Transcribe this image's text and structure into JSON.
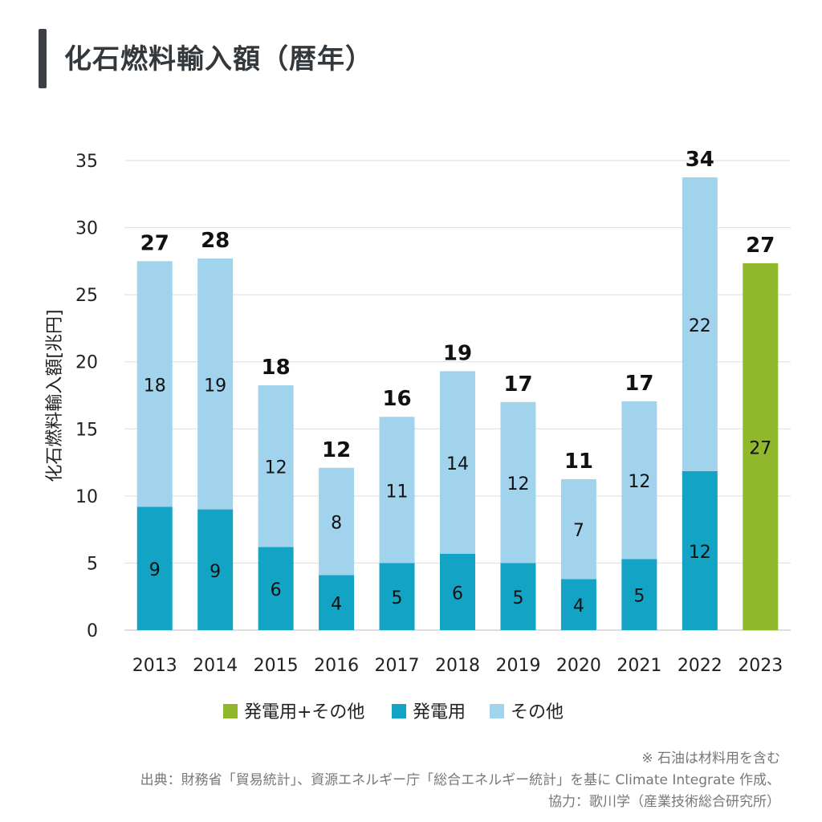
{
  "title": "化石燃料輸入額（暦年）",
  "chart_data": {
    "type": "bar",
    "stacked": true,
    "title": "化石燃料輸入額（暦年）",
    "ylabel": "化石燃料輸入額[兆円]",
    "xlabel": "",
    "ylim": [
      0,
      35
    ],
    "yticks": [
      0,
      5,
      10,
      15,
      20,
      25,
      30,
      35
    ],
    "grid": true,
    "legend_position": "bottom",
    "categories": [
      "2013",
      "2014",
      "2015",
      "2016",
      "2017",
      "2018",
      "2019",
      "2020",
      "2021",
      "2022",
      "2023"
    ],
    "series": [
      {
        "name": "発電用",
        "color": "#12a3c5",
        "values": [
          9.2,
          9.0,
          6.2,
          4.1,
          5.0,
          5.7,
          5.0,
          3.8,
          5.3,
          11.85,
          null
        ],
        "labels": [
          "9",
          "9",
          "6",
          "4",
          "5",
          "6",
          "5",
          "4",
          "5",
          "12",
          ""
        ]
      },
      {
        "name": "その他",
        "color": "#a1d3ec",
        "values": [
          18.3,
          18.7,
          12.05,
          8.0,
          10.9,
          13.6,
          12.0,
          7.45,
          11.75,
          21.9,
          null
        ],
        "labels": [
          "18",
          "19",
          "12",
          "8",
          "11",
          "14",
          "12",
          "7",
          "12",
          "22",
          ""
        ]
      },
      {
        "name": "発電用+その他",
        "color": "#8fb82d",
        "values": [
          null,
          null,
          null,
          null,
          null,
          null,
          null,
          null,
          null,
          null,
          27.35
        ],
        "labels": [
          "",
          "",
          "",
          "",
          "",
          "",
          "",
          "",
          "",
          "",
          "27"
        ]
      }
    ],
    "totals": [
      "27",
      "28",
      "18",
      "12",
      "16",
      "19",
      "17",
      "11",
      "17",
      "34",
      "27"
    ],
    "legend": [
      "発電用+その他",
      "発電用",
      "その他"
    ]
  },
  "notes": {
    "line1": "※ 石油は材料用を含む",
    "line2": "出典：財務省「貿易統計」、資源エネルギー庁「総合エネルギー統計」を基に Climate Integrate 作成、",
    "line3": "協力：歌川学（産業技術総合研究所）"
  }
}
